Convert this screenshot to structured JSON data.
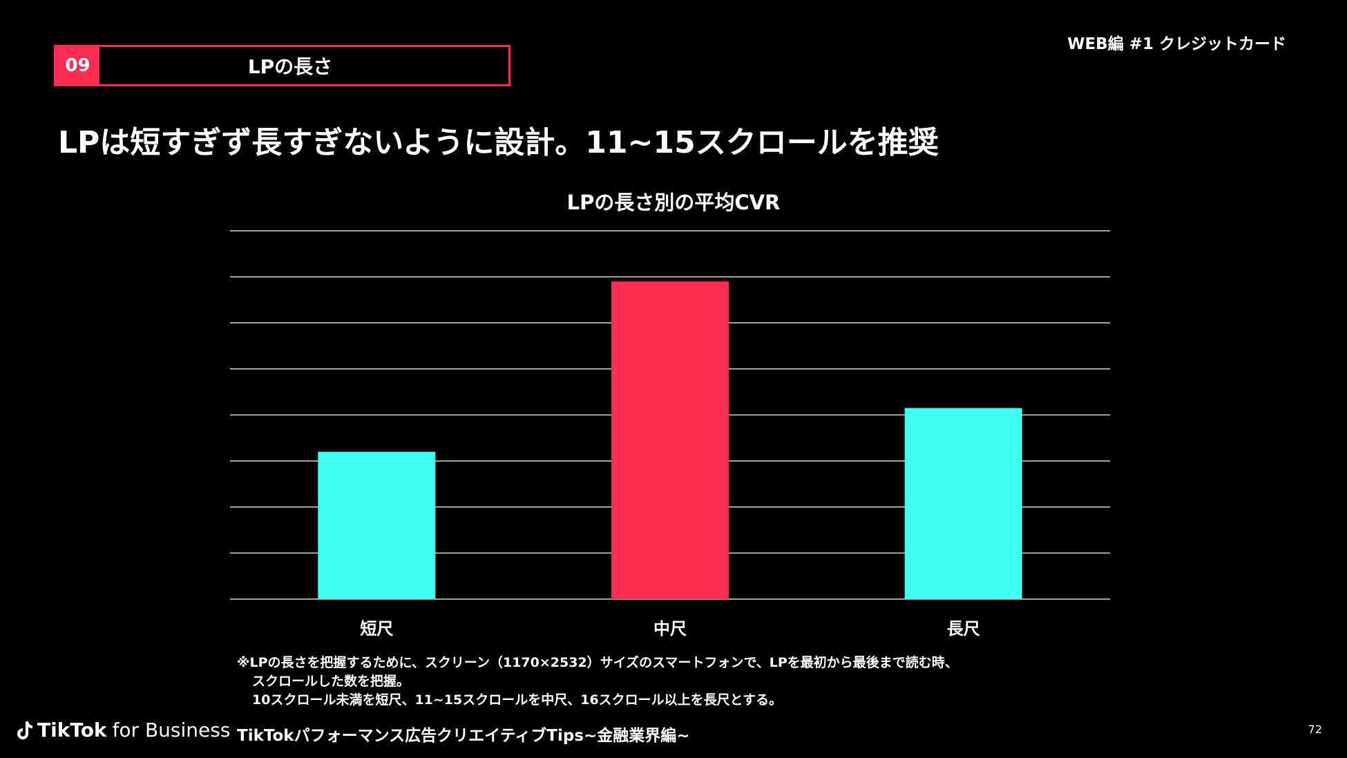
{
  "section": {
    "number": "09",
    "title": "LPの長さ"
  },
  "top_right_label": "WEB編 #1 クレジットカード",
  "headline": "LPは短すぎず長すぎないように設計。11~15スクロールを推奨",
  "chart_data": {
    "type": "bar",
    "title": "LPの長さ別の平均CVR",
    "categories": [
      "短尺",
      "中尺",
      "長尺"
    ],
    "values": [
      3.2,
      6.9,
      4.15
    ],
    "ylim": [
      0,
      8
    ],
    "grid": true,
    "colors": [
      "#3ffff2",
      "#fe2c55",
      "#3ffff2"
    ],
    "xlabel": "",
    "ylabel": ""
  },
  "footnote": [
    "※LPの長さを把握するために、スクリーン（1170×2532）サイズのスマートフォンで、LPを最初から最後まで読む時、",
    "スクロールした数を把握。",
    "10スクロール未満を短尺、11~15スクロールを中尺、16スクロール以上を長尺とする。"
  ],
  "footer": {
    "logo_brand": "TikTok",
    "logo_sub": "for Business",
    "logo_icon": "tiktok-note-icon",
    "text": "TikTokパフォーマンス広告クリエイティブTips~金融業界編~",
    "page": "72"
  }
}
